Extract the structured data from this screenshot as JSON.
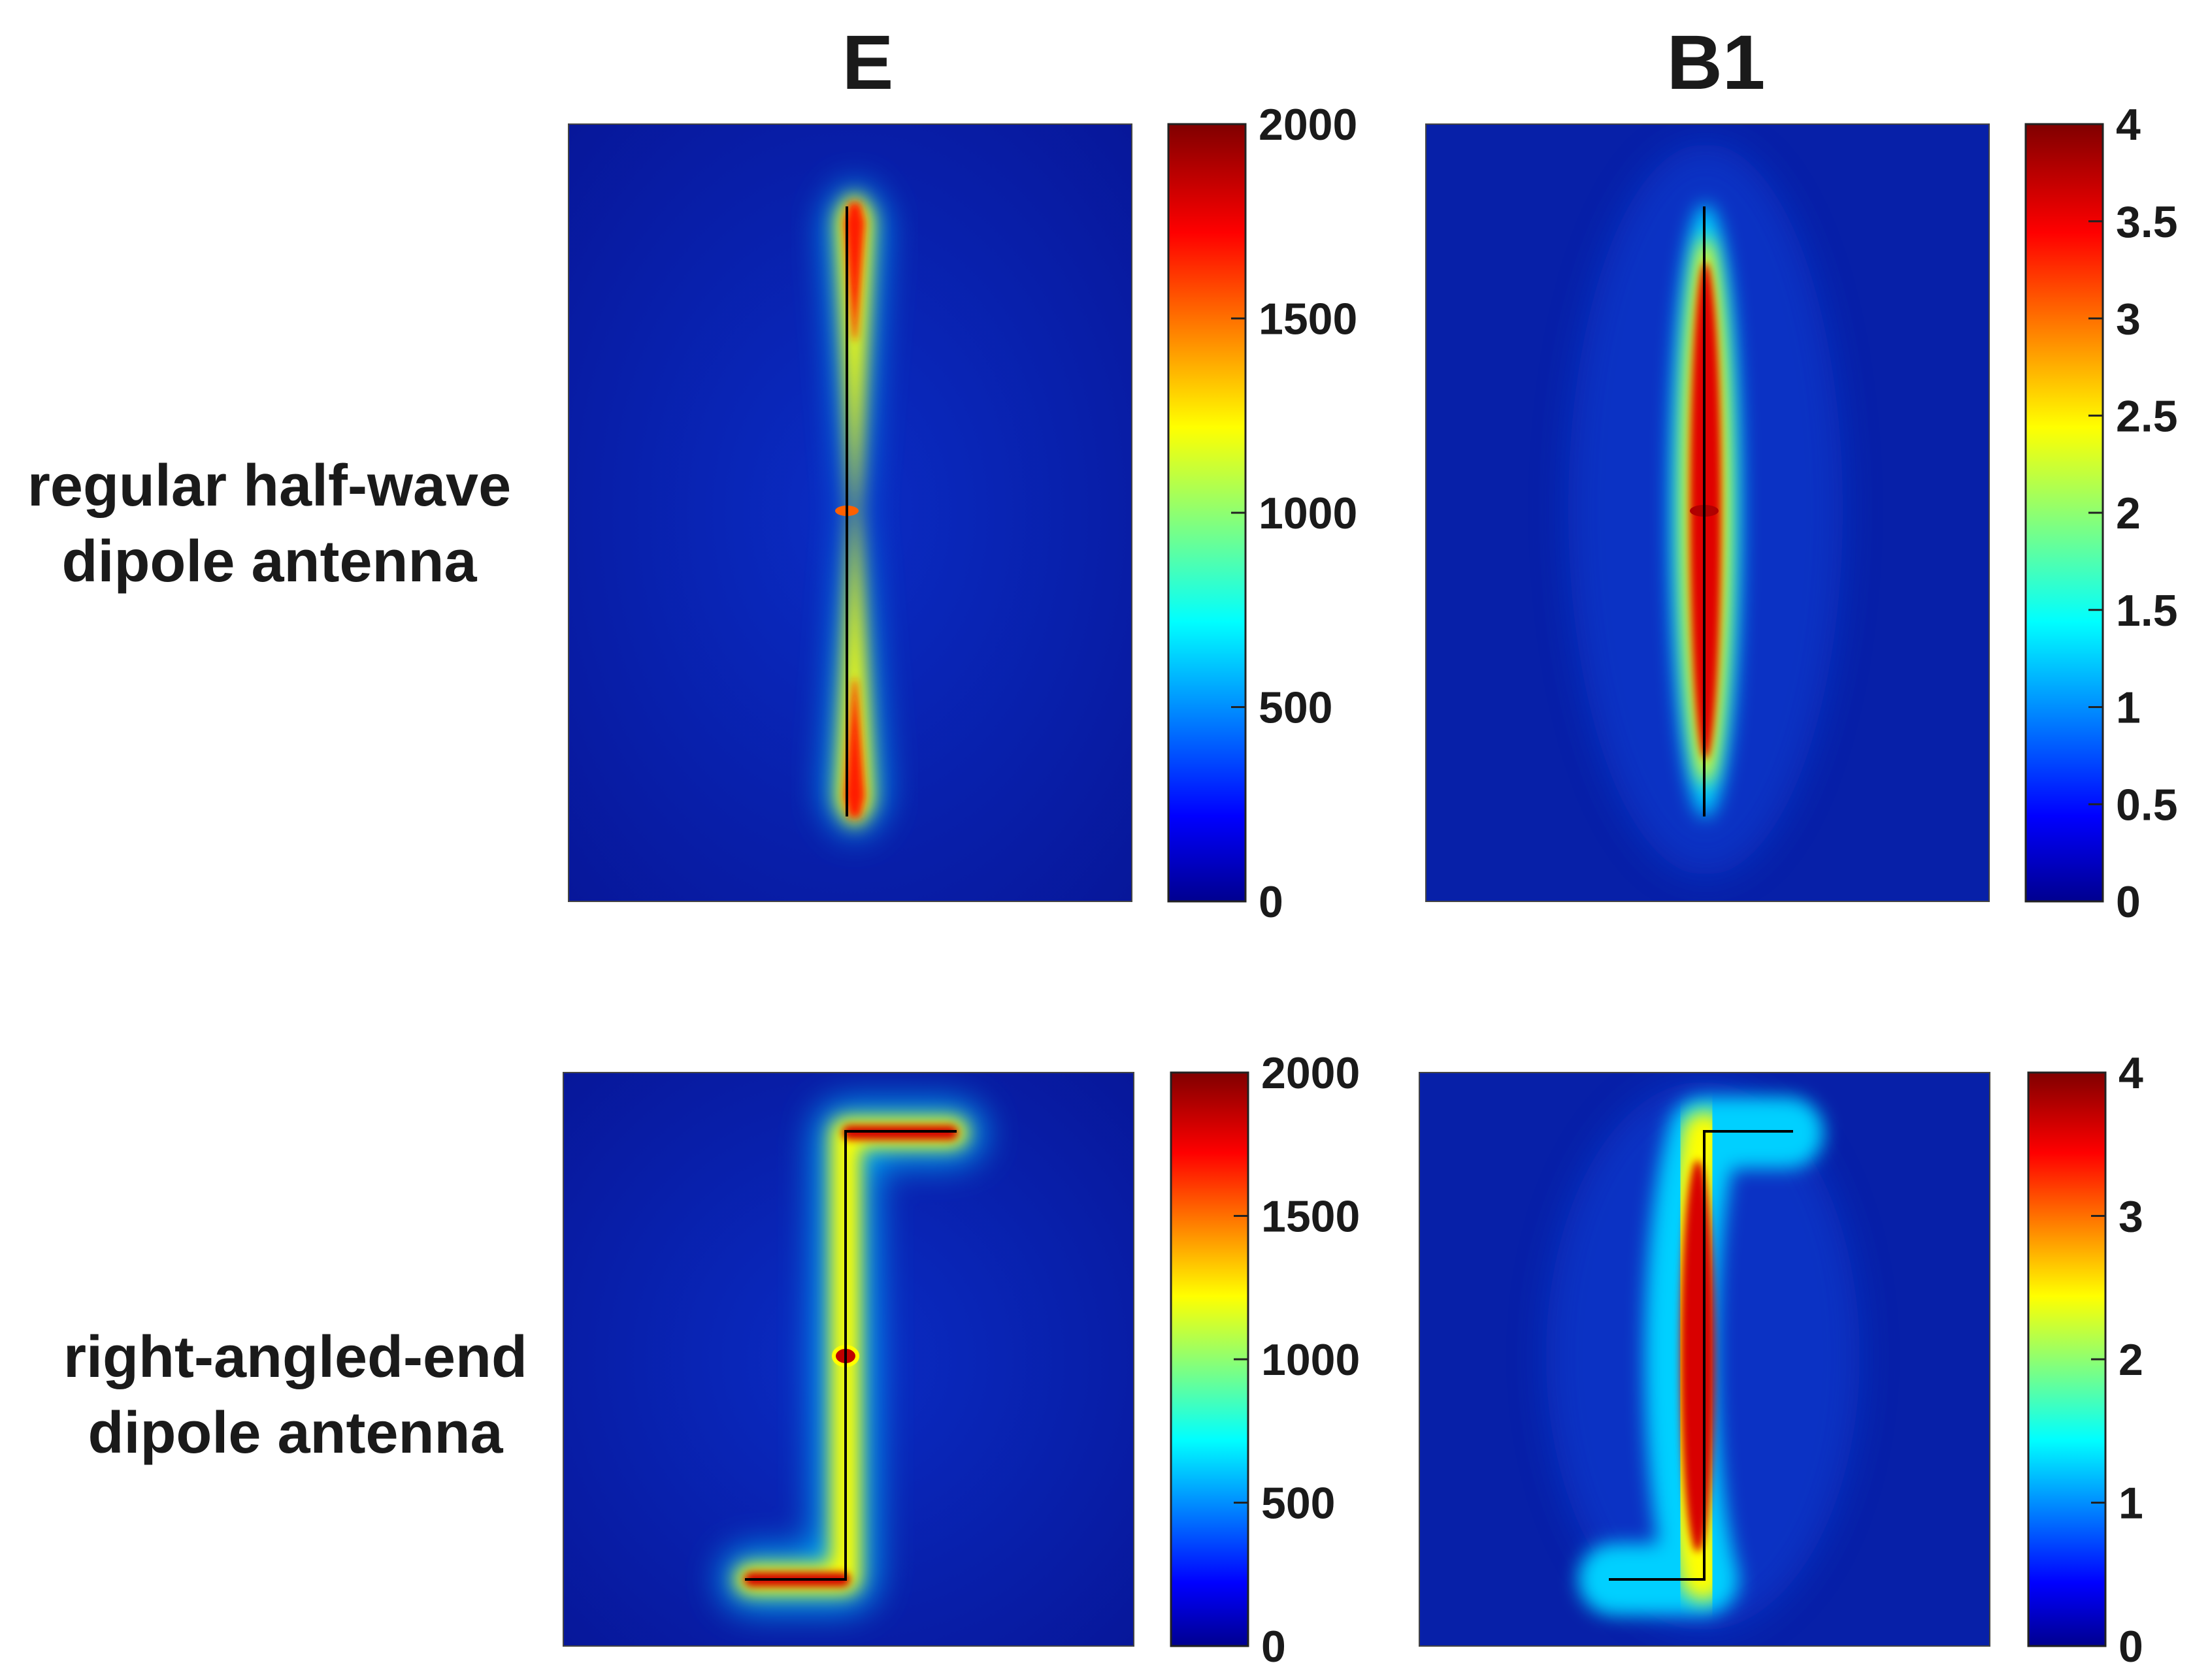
{
  "figure": {
    "column_titles": [
      "E",
      "B1"
    ],
    "row_labels": [
      [
        "regular half-wave",
        "dipole antenna"
      ],
      [
        "right-angled-end",
        "dipole antenna"
      ]
    ]
  },
  "colors": {
    "background_field": "#0a26b8",
    "conductor": "#000000",
    "colormap": "jet",
    "colormap_stops": [
      "#00008f",
      "#0000ff",
      "#00ffff",
      "#ffff00",
      "#ff0000",
      "#800000"
    ]
  },
  "chart_data": [
    {
      "type": "heatmap",
      "title": "E",
      "row": "regular half-wave dipole antenna",
      "antenna_shape": "straight",
      "field": "E",
      "colorbar": {
        "min": 0,
        "max": 2000,
        "ticks": [
          0,
          500,
          1000,
          1500,
          2000
        ],
        "tick_labels": [
          "0",
          "500",
          "1000",
          "1500",
          "2000"
        ]
      }
    },
    {
      "type": "heatmap",
      "title": "B1",
      "row": "regular half-wave dipole antenna",
      "antenna_shape": "straight",
      "field": "B1",
      "colorbar": {
        "min": 0,
        "max": 4,
        "ticks": [
          0,
          0.5,
          1,
          1.5,
          2,
          2.5,
          3,
          3.5,
          4
        ],
        "tick_labels": [
          "0",
          "0.5",
          "1",
          "1.5",
          "2",
          "2.5",
          "3",
          "3.5",
          "4"
        ]
      }
    },
    {
      "type": "heatmap",
      "title": "E",
      "row": "right-angled-end dipole antenna",
      "antenna_shape": "right-angled-end",
      "field": "E",
      "colorbar": {
        "min": 0,
        "max": 2000,
        "ticks": [
          0,
          500,
          1000,
          1500,
          2000
        ],
        "tick_labels": [
          "0",
          "500",
          "1000",
          "1500",
          "2000"
        ]
      }
    },
    {
      "type": "heatmap",
      "title": "B1",
      "row": "right-angled-end dipole antenna",
      "antenna_shape": "right-angled-end",
      "field": "B1",
      "colorbar": {
        "min": 0,
        "max": 4,
        "ticks": [
          0,
          1,
          2,
          3,
          4
        ],
        "tick_labels": [
          "0",
          "1",
          "2",
          "3",
          "4"
        ]
      }
    }
  ]
}
